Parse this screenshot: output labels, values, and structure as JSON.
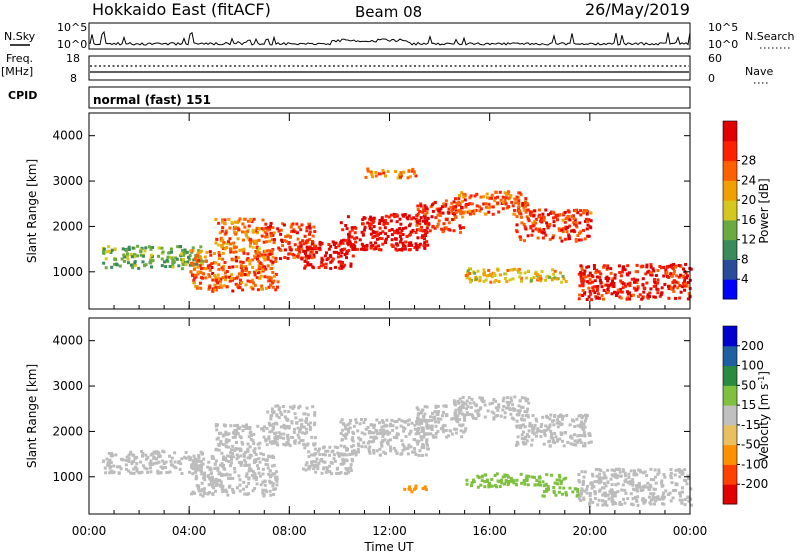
{
  "header": {
    "station": "Hokkaido East (fitACF)",
    "beam": "Beam 08",
    "date": "26/May/2019"
  },
  "side_labels": {
    "nsky": "N.Sky",
    "freq": "Freq.",
    "freq_unit": "[MHz]",
    "cpid": "CPID",
    "nsearch": "N.Search",
    "nave": "Nave"
  },
  "noise_axis": {
    "left_ticks": [
      "10^5",
      "10^0"
    ],
    "right_ticks": [
      "10^5",
      "10^0"
    ]
  },
  "freq_axis": {
    "left_ticks": [
      "18",
      "8"
    ],
    "right_ticks": [
      "60",
      "0"
    ]
  },
  "cpid_text": "normal (fast) 151",
  "x_axis": {
    "label": "Time UT",
    "ticks": [
      "00:00",
      "04:00",
      "08:00",
      "12:00",
      "16:00",
      "20:00",
      "00:00"
    ]
  },
  "colors": {
    "power_scale": [
      "#0000ff",
      "#2a4a9a",
      "#3a8a5a",
      "#6aaa40",
      "#d4c820",
      "#f0a000",
      "#ff6000",
      "#ff2000",
      "#e00000"
    ],
    "velocity_scale": [
      "#e00000",
      "#ff4000",
      "#ff9000",
      "#e8c060",
      "#c0c0c0",
      "#80c040",
      "#2a8a40",
      "#2060a0",
      "#0000d0"
    ],
    "ground_scatter": "#bcbcbc"
  },
  "chart_data": [
    {
      "type": "heatmap",
      "name": "power",
      "ylabel": "Slant Range [km]",
      "xlabel": "",
      "x_range_hours": [
        0,
        24
      ],
      "ylim": [
        180,
        4500
      ],
      "y_ticks": [
        1000,
        2000,
        3000,
        4000
      ],
      "colorbar": {
        "label": "Power [dB]",
        "ticks": [
          4,
          8,
          12,
          16,
          20,
          24,
          28
        ],
        "range": [
          0,
          32
        ]
      },
      "echo_bands": [
        {
          "t0": 0.5,
          "t1": 4.5,
          "r0": 1100,
          "r1": 1600,
          "value": 12
        },
        {
          "t0": 4.0,
          "t1": 7.5,
          "r0": 600,
          "r1": 1500,
          "value": 24
        },
        {
          "t0": 5.0,
          "t1": 7.0,
          "r0": 1500,
          "r1": 2200,
          "value": 22
        },
        {
          "t0": 7.0,
          "t1": 9.0,
          "r0": 1300,
          "r1": 2100,
          "value": 26
        },
        {
          "t0": 8.5,
          "t1": 10.5,
          "r0": 1100,
          "r1": 1700,
          "value": 30
        },
        {
          "t0": 10.0,
          "t1": 13.5,
          "r0": 1500,
          "r1": 2300,
          "value": 30
        },
        {
          "t0": 13.0,
          "t1": 15.0,
          "r0": 1900,
          "r1": 2600,
          "value": 26
        },
        {
          "t0": 14.5,
          "t1": 17.5,
          "r0": 2300,
          "r1": 2800,
          "value": 24
        },
        {
          "t0": 17.0,
          "t1": 20.0,
          "r0": 1700,
          "r1": 2400,
          "value": 26
        },
        {
          "t0": 15.0,
          "t1": 19.0,
          "r0": 800,
          "r1": 1100,
          "value": 18
        },
        {
          "t0": 19.5,
          "t1": 24.0,
          "r0": 400,
          "r1": 1200,
          "value": 28
        },
        {
          "t0": 11.0,
          "t1": 13.0,
          "r0": 3100,
          "r1": 3300,
          "value": 22
        }
      ]
    },
    {
      "type": "heatmap",
      "name": "velocity",
      "ylabel": "Slant Range [km]",
      "xlabel": "Time UT",
      "x_range_hours": [
        0,
        24
      ],
      "ylim": [
        180,
        4500
      ],
      "y_ticks": [
        1000,
        2000,
        3000,
        4000
      ],
      "colorbar": {
        "label": "Velocity [m s^-1]",
        "ticks": [
          -200,
          -100,
          -50,
          -15,
          15,
          50,
          100,
          200
        ],
        "range": [
          -250,
          250
        ]
      },
      "echo_bands": [
        {
          "t0": 0.5,
          "t1": 4.5,
          "r0": 1100,
          "r1": 1600,
          "value": 0
        },
        {
          "t0": 4.0,
          "t1": 7.5,
          "r0": 600,
          "r1": 1500,
          "value": 0
        },
        {
          "t0": 5.0,
          "t1": 7.0,
          "r0": 1500,
          "r1": 2200,
          "value": 0
        },
        {
          "t0": 7.0,
          "t1": 9.0,
          "r0": 1700,
          "r1": 2600,
          "value": 0
        },
        {
          "t0": 8.5,
          "t1": 10.5,
          "r0": 1100,
          "r1": 1700,
          "value": 0
        },
        {
          "t0": 10.0,
          "t1": 13.5,
          "r0": 1500,
          "r1": 2300,
          "value": 0
        },
        {
          "t0": 13.0,
          "t1": 15.0,
          "r0": 1900,
          "r1": 2600,
          "value": 0
        },
        {
          "t0": 14.5,
          "t1": 17.5,
          "r0": 2300,
          "r1": 2800,
          "value": 0
        },
        {
          "t0": 17.0,
          "t1": 20.0,
          "r0": 1700,
          "r1": 2400,
          "value": 0
        },
        {
          "t0": 15.0,
          "t1": 19.0,
          "r0": 800,
          "r1": 1100,
          "value": 30
        },
        {
          "t0": 19.5,
          "t1": 24.0,
          "r0": 400,
          "r1": 1200,
          "value": 0
        },
        {
          "t0": 18.0,
          "t1": 19.5,
          "r0": 600,
          "r1": 800,
          "value": 40
        },
        {
          "t0": 12.5,
          "t1": 13.5,
          "r0": 700,
          "r1": 850,
          "value": -60
        }
      ]
    }
  ]
}
